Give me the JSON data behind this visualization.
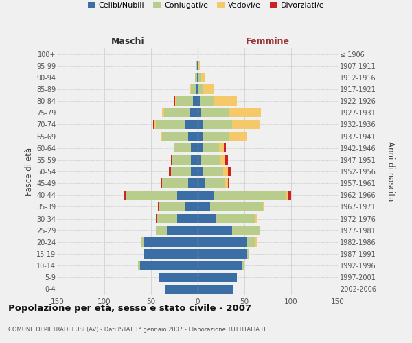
{
  "age_groups": [
    "0-4",
    "5-9",
    "10-14",
    "15-19",
    "20-24",
    "25-29",
    "30-34",
    "35-39",
    "40-44",
    "45-49",
    "50-54",
    "55-59",
    "60-64",
    "65-69",
    "70-74",
    "75-79",
    "80-84",
    "85-89",
    "90-94",
    "95-99",
    "100+"
  ],
  "birth_years": [
    "2002-2006",
    "1997-2001",
    "1992-1996",
    "1987-1991",
    "1982-1986",
    "1977-1981",
    "1972-1976",
    "1967-1971",
    "1962-1966",
    "1957-1961",
    "1952-1956",
    "1947-1951",
    "1942-1946",
    "1937-1941",
    "1932-1936",
    "1927-1931",
    "1922-1926",
    "1917-1921",
    "1912-1916",
    "1907-1911",
    "≤ 1906"
  ],
  "maschi": {
    "celibi": [
      35,
      42,
      62,
      58,
      57,
      33,
      22,
      14,
      22,
      10,
      7,
      7,
      7,
      10,
      13,
      8,
      5,
      2,
      1,
      1,
      0
    ],
    "coniugati": [
      0,
      0,
      2,
      0,
      3,
      12,
      22,
      28,
      55,
      28,
      22,
      20,
      18,
      28,
      32,
      28,
      18,
      5,
      2,
      1,
      0
    ],
    "vedovi": [
      0,
      0,
      0,
      0,
      1,
      0,
      0,
      0,
      0,
      0,
      0,
      0,
      0,
      1,
      2,
      2,
      1,
      1,
      0,
      0,
      0
    ],
    "divorziati": [
      0,
      0,
      0,
      0,
      0,
      0,
      1,
      1,
      2,
      1,
      2,
      2,
      0,
      0,
      1,
      0,
      1,
      0,
      0,
      0,
      0
    ]
  },
  "femmine": {
    "nubili": [
      38,
      42,
      47,
      52,
      52,
      37,
      20,
      13,
      17,
      7,
      5,
      4,
      5,
      5,
      5,
      3,
      2,
      1,
      1,
      1,
      0
    ],
    "coniugate": [
      0,
      0,
      2,
      3,
      10,
      30,
      42,
      57,
      77,
      22,
      22,
      20,
      18,
      28,
      32,
      30,
      15,
      5,
      2,
      0,
      0
    ],
    "vedove": [
      0,
      0,
      0,
      0,
      1,
      0,
      1,
      1,
      3,
      3,
      5,
      5,
      5,
      20,
      30,
      35,
      25,
      12,
      5,
      1,
      0
    ],
    "divorziate": [
      0,
      0,
      0,
      0,
      0,
      0,
      0,
      0,
      3,
      2,
      3,
      3,
      2,
      0,
      0,
      0,
      0,
      0,
      0,
      0,
      0
    ]
  },
  "colors": {
    "celibi": "#3b6ea5",
    "coniugati": "#b8cc8c",
    "vedovi": "#f5c86a",
    "divorziati": "#cc2222"
  },
  "xlim": 150,
  "title": "Popolazione per età, sesso e stato civile - 2007",
  "subtitle": "COMUNE DI PIETRADEFUSI (AV) - Dati ISTAT 1° gennaio 2007 - Elaborazione TUTTITALIA.IT",
  "ylabel_left": "Fasce di età",
  "ylabel_right": "Anni di nascita",
  "xlabel_maschi": "Maschi",
  "xlabel_femmine": "Femmine",
  "bg_color": "#f0f0f0",
  "grid_color": "#cccccc",
  "legend_labels": [
    "Celibi/Nubili",
    "Coniugati/e",
    "Vedovi/e",
    "Divorziati/e"
  ]
}
